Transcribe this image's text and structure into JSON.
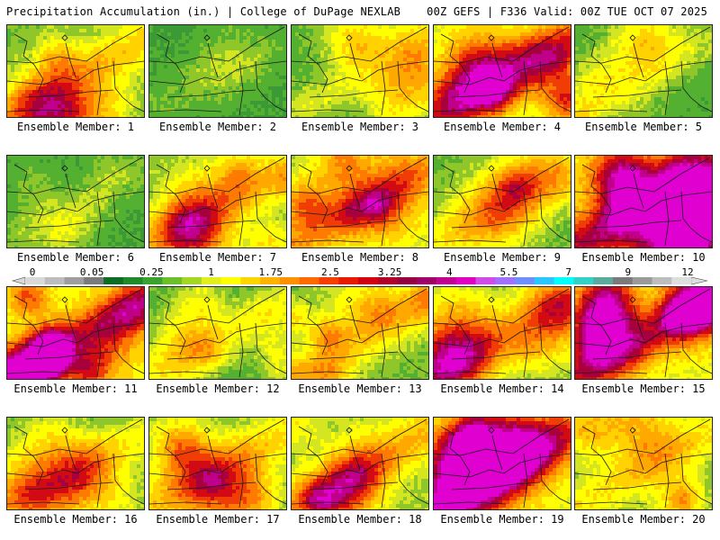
{
  "header": {
    "left": "Precipitation Accumulation (in.) | College of DuPage NEXLAB",
    "right": "00Z GEFS | F336 Valid: 00Z TUE OCT 07 2025"
  },
  "members": [
    {
      "label": "Ensemble Member: 1",
      "intensity": 1.6
    },
    {
      "label": "Ensemble Member: 2",
      "intensity": 0.4
    },
    {
      "label": "Ensemble Member: 3",
      "intensity": 1.0
    },
    {
      "label": "Ensemble Member: 4",
      "intensity": 2.3
    },
    {
      "label": "Ensemble Member: 5",
      "intensity": 0.9
    },
    {
      "label": "Ensemble Member: 6",
      "intensity": 0.6
    },
    {
      "label": "Ensemble Member: 7",
      "intensity": 1.6
    },
    {
      "label": "Ensemble Member: 8",
      "intensity": 1.9
    },
    {
      "label": "Ensemble Member: 9",
      "intensity": 1.2
    },
    {
      "label": "Ensemble Member: 10",
      "intensity": 3.2
    },
    {
      "label": "Ensemble Member: 11",
      "intensity": 3.0
    },
    {
      "label": "Ensemble Member: 12",
      "intensity": 1.0
    },
    {
      "label": "Ensemble Member: 13",
      "intensity": 1.5
    },
    {
      "label": "Ensemble Member: 14",
      "intensity": 1.6
    },
    {
      "label": "Ensemble Member: 15",
      "intensity": 2.8
    },
    {
      "label": "Ensemble Member: 16",
      "intensity": 1.2
    },
    {
      "label": "Ensemble Member: 17",
      "intensity": 1.5
    },
    {
      "label": "Ensemble Member: 18",
      "intensity": 1.9
    },
    {
      "label": "Ensemble Member: 19",
      "intensity": 2.6
    },
    {
      "label": "Ensemble Member: 20",
      "intensity": 1.4
    }
  ],
  "colorbar": {
    "labels": [
      "0",
      "0.05",
      "0.25",
      "1",
      "1.75",
      "2.5",
      "3.25",
      "4",
      "5.5",
      "7",
      "9",
      "12"
    ],
    "colors": [
      "#d9d9d9",
      "#bdbdbd",
      "#9e9e9e",
      "#7a7a7a",
      "#0d6e23",
      "#1e8a2a",
      "#3aa32f",
      "#6abf2a",
      "#a6d624",
      "#e3ef1d",
      "#ffff00",
      "#ffd500",
      "#ffb300",
      "#ff9100",
      "#ff6a00",
      "#f53e00",
      "#e81b00",
      "#d40011",
      "#b30028",
      "#960040",
      "#a0006a",
      "#c20090",
      "#e000c0",
      "#d04ce8",
      "#a070ff",
      "#6f8fff",
      "#29c6ff",
      "#00ffff",
      "#33d2c8",
      "#5aaa9e",
      "#7a7a7a",
      "#9a9a9a",
      "#bdbdbd",
      "#dedede"
    ]
  }
}
